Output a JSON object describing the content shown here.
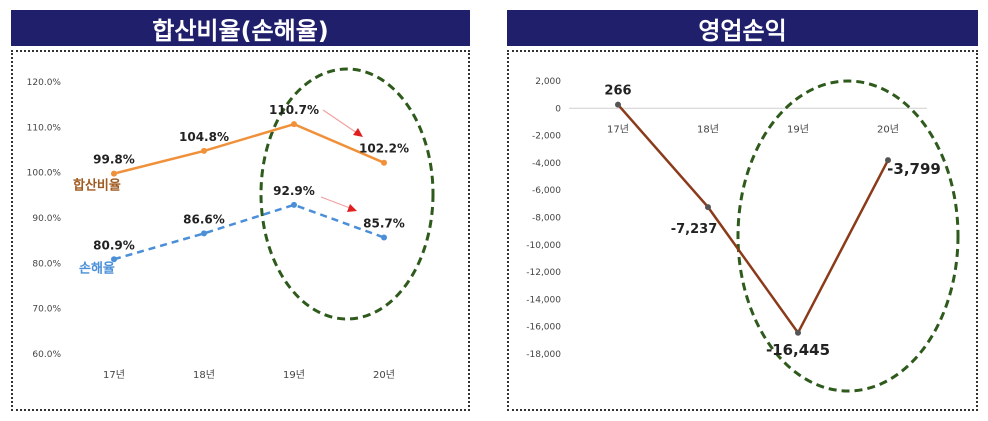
{
  "panels": {
    "left_title": "합산비율(손해율)",
    "right_title": "영업손익"
  },
  "chart_data": [
    {
      "type": "line",
      "title": "합산비율(손해율)",
      "categories": [
        "17년",
        "18년",
        "19년",
        "20년"
      ],
      "y_tick_labels": [
        "60.0%",
        "70.0%",
        "80.0%",
        "90.0%",
        "100.0%",
        "110.0%",
        "120.0%"
      ],
      "ylim": [
        60,
        120
      ],
      "grid": false,
      "series": [
        {
          "name": "합산비율",
          "values": [
            99.8,
            104.8,
            110.7,
            102.2
          ],
          "labels": [
            "99.8%",
            "104.8%",
            "110.7%",
            "102.2%"
          ],
          "color": "#f0913a",
          "style": "solid"
        },
        {
          "name": "손해율",
          "values": [
            80.9,
            86.6,
            92.9,
            85.7
          ],
          "labels": [
            "80.9%",
            "86.6%",
            "92.9%",
            "85.7%"
          ],
          "color": "#4a8fd8",
          "style": "dashed"
        }
      ],
      "highlight": "19년–20년",
      "highlight_color": "#2e5a1c",
      "arrow_color": "#e02020"
    },
    {
      "type": "line",
      "title": "영업손익",
      "categories": [
        "17년",
        "18년",
        "19년",
        "20년"
      ],
      "y_tick_labels": [
        "2,000",
        "0",
        "-2,000",
        "-4,000",
        "-6,000",
        "-8,000",
        "-10,000",
        "-12,000",
        "-14,000",
        "-16,000",
        "-18,000"
      ],
      "ylim": [
        -18000,
        2000
      ],
      "grid": false,
      "series": [
        {
          "values": [
            266,
            -7237,
            -16445,
            -3799
          ],
          "labels": [
            "266",
            "-7,237",
            "-16,445",
            "-3,799"
          ],
          "color": "#8b3a1a",
          "style": "solid"
        }
      ],
      "highlight": "18년–20년",
      "highlight_color": "#2e5a1c"
    }
  ]
}
